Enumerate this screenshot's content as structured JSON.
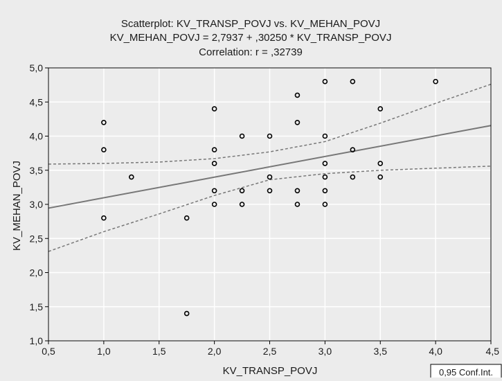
{
  "chart_data": {
    "type": "scatter",
    "title": [
      "Scatterplot: KV_TRANSP_POVJ vs. KV_MEHAN_POVJ",
      "KV_MEHAN_POVJ = 2,7937 + ,30250 * KV_TRANSP_POVJ",
      "Correlation: r = ,32739"
    ],
    "xlabel": "KV_TRANSP_POVJ",
    "ylabel": "KV_MEHAN_POVJ",
    "xlim": [
      0.5,
      4.5
    ],
    "ylim": [
      1.0,
      5.0
    ],
    "x_ticks": [
      0.5,
      1.0,
      1.5,
      2.0,
      2.5,
      3.0,
      3.5,
      4.0,
      4.5
    ],
    "x_tick_labels": [
      "0,5",
      "1,0",
      "1,5",
      "2,0",
      "2,5",
      "3,0",
      "3,5",
      "4,0",
      "4,5"
    ],
    "y_ticks": [
      1.0,
      1.5,
      2.0,
      2.5,
      3.0,
      3.5,
      4.0,
      4.5,
      5.0
    ],
    "y_tick_labels": [
      "1,0",
      "1,5",
      "2,0",
      "2,5",
      "3,0",
      "3,5",
      "4,0",
      "4,5",
      "5,0"
    ],
    "grid": true,
    "legend": "0,95 Conf.Int.",
    "regression": {
      "intercept": 2.7937,
      "slope": 0.3025
    },
    "confidence_band": {
      "x": [
        0.5,
        1.0,
        1.5,
        2.0,
        2.5,
        3.0,
        3.5,
        4.0,
        4.5
      ],
      "upper": [
        3.59,
        3.6,
        3.62,
        3.67,
        3.77,
        3.92,
        4.19,
        4.48,
        4.76
      ],
      "lower": [
        2.31,
        2.6,
        2.86,
        3.13,
        3.36,
        3.45,
        3.5,
        3.53,
        3.56
      ]
    },
    "points": [
      {
        "x": 1.0,
        "y": 4.2
      },
      {
        "x": 1.0,
        "y": 3.8
      },
      {
        "x": 1.0,
        "y": 2.8
      },
      {
        "x": 1.25,
        "y": 3.4
      },
      {
        "x": 1.75,
        "y": 2.8
      },
      {
        "x": 1.75,
        "y": 1.4
      },
      {
        "x": 2.0,
        "y": 4.4
      },
      {
        "x": 2.0,
        "y": 3.8
      },
      {
        "x": 2.0,
        "y": 3.6
      },
      {
        "x": 2.0,
        "y": 3.2
      },
      {
        "x": 2.0,
        "y": 3.0
      },
      {
        "x": 2.25,
        "y": 4.0
      },
      {
        "x": 2.25,
        "y": 3.2
      },
      {
        "x": 2.25,
        "y": 3.0
      },
      {
        "x": 2.5,
        "y": 4.0
      },
      {
        "x": 2.5,
        "y": 3.4
      },
      {
        "x": 2.5,
        "y": 3.2
      },
      {
        "x": 2.75,
        "y": 4.6
      },
      {
        "x": 2.75,
        "y": 4.2
      },
      {
        "x": 2.75,
        "y": 3.2
      },
      {
        "x": 2.75,
        "y": 3.0
      },
      {
        "x": 3.0,
        "y": 4.8
      },
      {
        "x": 3.0,
        "y": 4.0
      },
      {
        "x": 3.0,
        "y": 3.6
      },
      {
        "x": 3.0,
        "y": 3.4
      },
      {
        "x": 3.0,
        "y": 3.2
      },
      {
        "x": 3.0,
        "y": 3.0
      },
      {
        "x": 3.25,
        "y": 4.8
      },
      {
        "x": 3.25,
        "y": 3.8
      },
      {
        "x": 3.25,
        "y": 3.4
      },
      {
        "x": 3.5,
        "y": 4.4
      },
      {
        "x": 3.5,
        "y": 3.6
      },
      {
        "x": 3.5,
        "y": 3.4
      },
      {
        "x": 4.0,
        "y": 4.8
      }
    ],
    "colors": {
      "background": "#ececec",
      "plot_background": "#ececec",
      "grid": "#ffffff",
      "regression": "#777777",
      "confidence": "#777777",
      "point": "#000000",
      "axis": "#000000"
    }
  }
}
